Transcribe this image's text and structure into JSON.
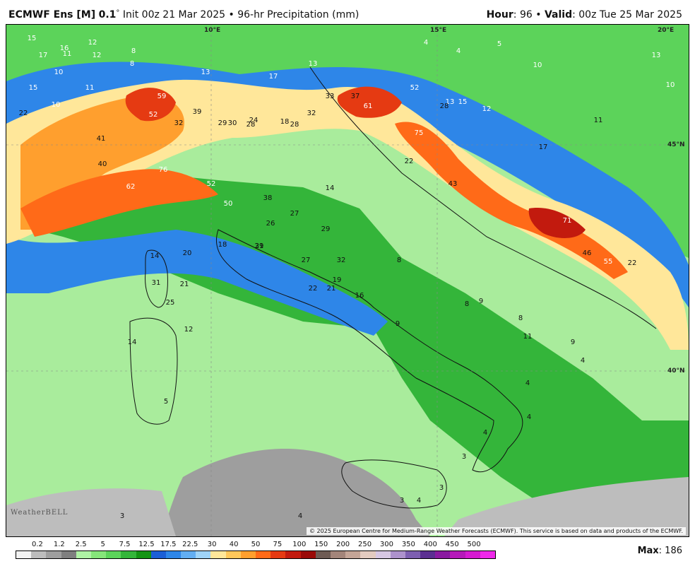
{
  "header": {
    "model": "ECMWF Ens [M]",
    "resolution": "0.1",
    "degree": "°",
    "init": "Init 00z 21 Mar 2025",
    "bullet": "•",
    "product": "96-hr Precipitation (mm)",
    "hour_label": "Hour",
    "hour_value": ": 96",
    "valid_label": "Valid",
    "valid_value": ": 00z Tue 25 Mar 2025"
  },
  "map": {
    "gridlabels": {
      "lon10": "10°E",
      "lon15": "15°E",
      "lon20": "20°E",
      "lat45": "45°N",
      "lat40": "40°N"
    },
    "values": [
      "15",
      "17",
      "11",
      "16",
      "12",
      "12",
      "8",
      "10",
      "8",
      "4",
      "4",
      "5",
      "10",
      "13",
      "10",
      "13",
      "11",
      "15",
      "10",
      "13",
      "17",
      "22",
      "11",
      "13",
      "59",
      "52",
      "39",
      "32",
      "29",
      "30",
      "24",
      "28",
      "28",
      "18",
      "32",
      "33",
      "37",
      "61",
      "52",
      "28",
      "15",
      "12",
      "17",
      "75",
      "41",
      "40",
      "76",
      "62",
      "50",
      "38",
      "52",
      "27",
      "26",
      "29",
      "31",
      "22",
      "43",
      "71",
      "46",
      "55",
      "22",
      "14",
      "14",
      "20",
      "18",
      "29",
      "27",
      "32",
      "19",
      "22",
      "21",
      "16",
      "31",
      "21",
      "25",
      "14",
      "12",
      "8",
      "8",
      "9",
      "9",
      "8",
      "11",
      "9",
      "4",
      "4",
      "4",
      "3",
      "5",
      "3",
      "4",
      "3",
      "3",
      "4",
      "4"
    ],
    "credit": "© 2025 European Centre for Medium-Range Weather Forecasts (ECMWF). This service is based on data and products of the ECMWF.",
    "watermark": "WeatherBELL"
  },
  "legend": {
    "ticks": [
      "0.2",
      "1.2",
      "2.5",
      "5",
      "7.5",
      "12.5",
      "17.5",
      "22.5",
      "30",
      "40",
      "50",
      "75",
      "100",
      "150",
      "200",
      "250",
      "300",
      "350",
      "400",
      "450",
      "500"
    ],
    "colors": [
      "#f2f2f2",
      "#bdbdbd",
      "#9e9e9e",
      "#7f7f7f",
      "#aef2a4",
      "#86e57a",
      "#5cd35a",
      "#34b53a",
      "#149414",
      "#1b5fd6",
      "#2e86e8",
      "#63aef2",
      "#9fd3f7",
      "#ffe79a",
      "#ffc75a",
      "#ff9f2e",
      "#ff6a18",
      "#e53a12",
      "#c21a0e",
      "#9a0a08",
      "#6e5b54",
      "#a3857a",
      "#c4a597",
      "#e3cbc0",
      "#d7c7e3",
      "#ad92cc",
      "#7d5fb0",
      "#5b2f91",
      "#8a1aa0",
      "#b51ab9",
      "#d61ad1",
      "#ef28ea"
    ],
    "max_label": "Max",
    "max_value": ": 186"
  }
}
